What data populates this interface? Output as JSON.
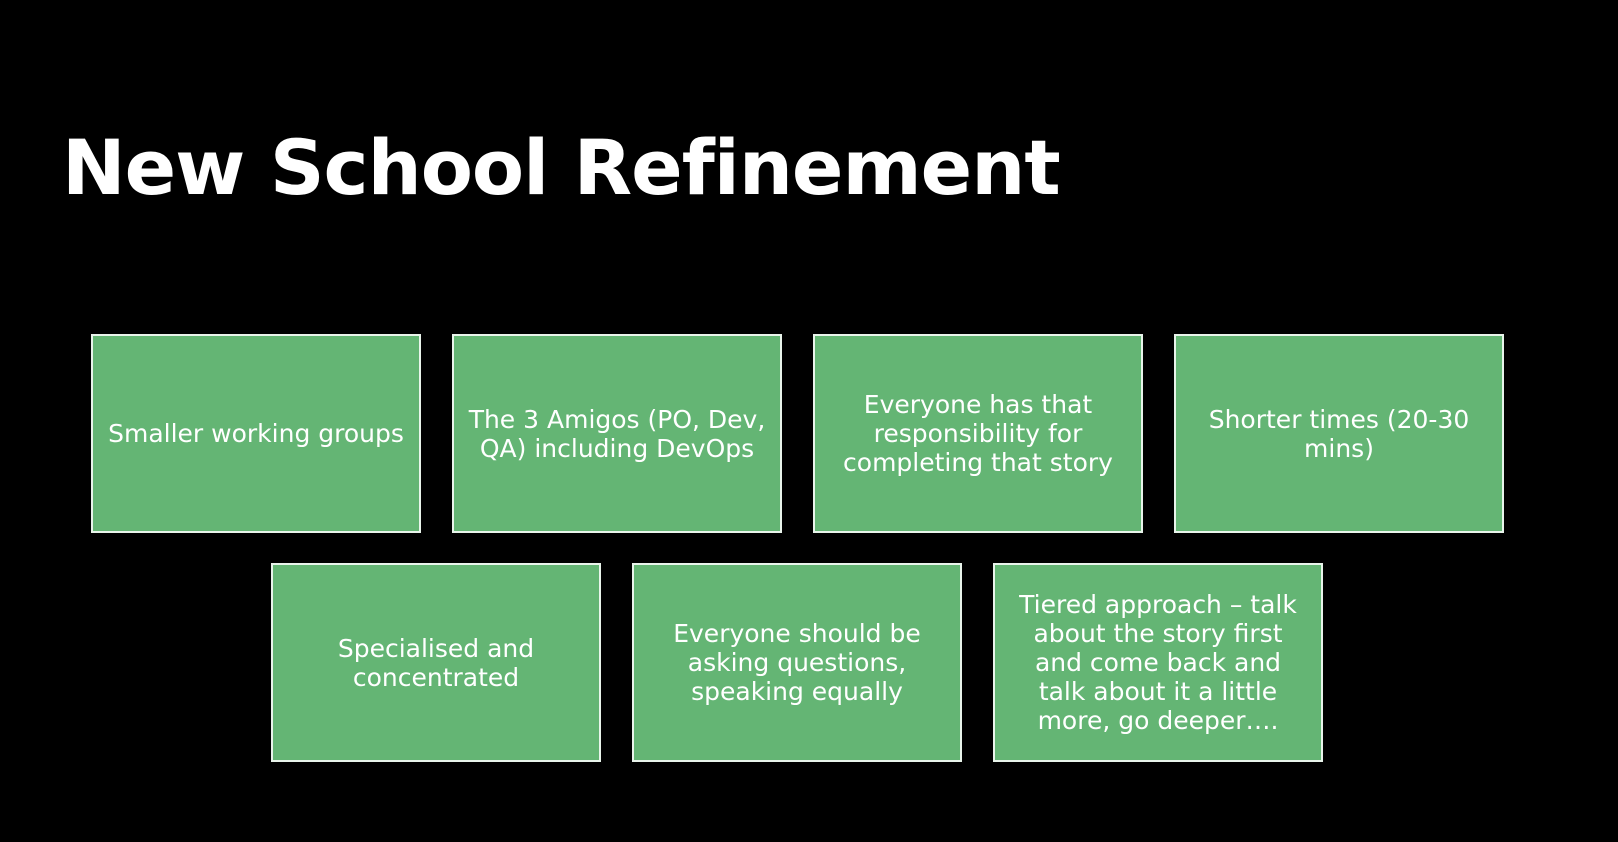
{
  "slide": {
    "title": "New School Refinement",
    "colors": {
      "background": "#000000",
      "box_fill": "#64b574",
      "box_border": "#e9f4eb",
      "text": "#ffffff"
    },
    "boxes": [
      {
        "text": "Smaller working groups"
      },
      {
        "text": "The 3 Amigos (PO, Dev, QA) including DevOps"
      },
      {
        "text": "Everyone has that responsibility for completing that story"
      },
      {
        "text": "Shorter times (20-30 mins)"
      },
      {
        "text": "Specialised and concentrated"
      },
      {
        "text": "Everyone should be asking questions, speaking equally"
      },
      {
        "text": "Tiered approach – talk about the story first and come back and talk about it a little more, go deeper…."
      }
    ]
  }
}
